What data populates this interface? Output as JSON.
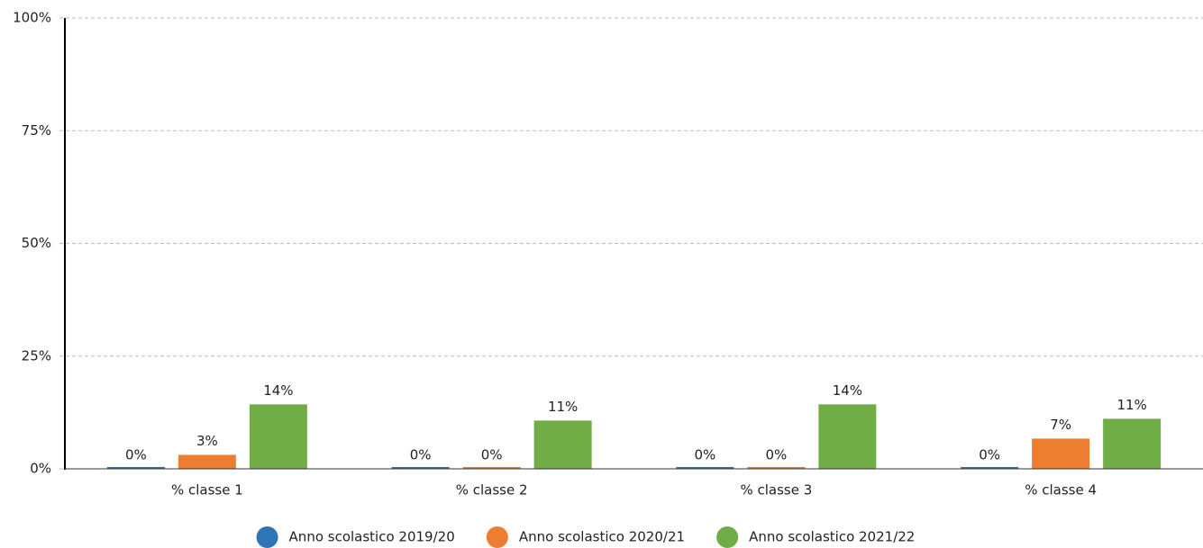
{
  "chart_data": {
    "type": "bar",
    "categories": [
      "% classe 1",
      "% classe 2",
      "% classe 3",
      "% classe 4"
    ],
    "series": [
      {
        "name": "Anno scolastico 2019/20",
        "color": "#2e75b6",
        "values": [
          0,
          0,
          0,
          0
        ],
        "value_labels": [
          "0%",
          "0%",
          "0%",
          "0%"
        ]
      },
      {
        "name": "Anno scolastico 2020/21",
        "color": "#ed7d31",
        "values": [
          3.1,
          0,
          0,
          6.7
        ],
        "value_labels": [
          "3%",
          "0%",
          "0%",
          "7%"
        ]
      },
      {
        "name": "Anno scolastico 2021/22",
        "color": "#70ad47",
        "values": [
          14.3,
          10.7,
          14.3,
          11.1
        ],
        "value_labels": [
          "14%",
          "11%",
          "14%",
          "11%"
        ]
      }
    ],
    "ylim": [
      0,
      100
    ],
    "yticks": [
      {
        "value": 0,
        "label": "0%"
      },
      {
        "value": 25,
        "label": "25%"
      },
      {
        "value": 50,
        "label": "50%"
      },
      {
        "value": 75,
        "label": "75%"
      },
      {
        "value": 100,
        "label": "100%"
      }
    ],
    "grid": true,
    "legend": "bottom"
  }
}
